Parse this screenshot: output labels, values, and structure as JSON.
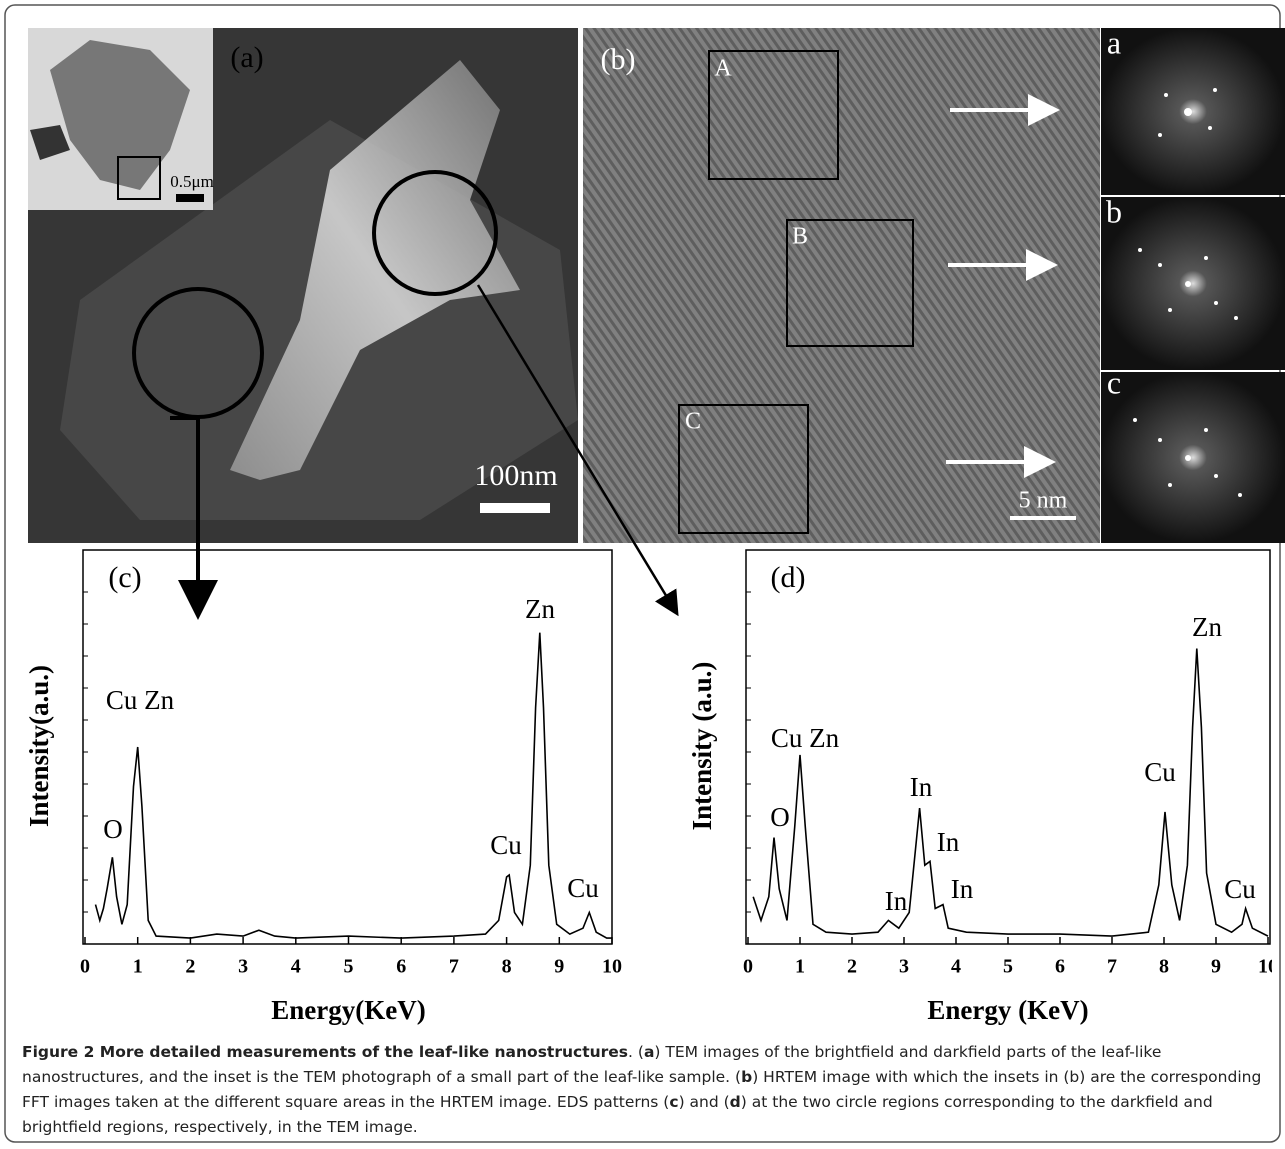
{
  "panels": {
    "a": {
      "label": "(a)",
      "inset_scale": "0.5μm",
      "scale": "100nm"
    },
    "b": {
      "label": "(b)",
      "regions": [
        "A",
        "B",
        "C"
      ],
      "scale": "5 nm",
      "fft_labels": [
        "a",
        "b",
        "c"
      ]
    }
  },
  "chart_data": [
    {
      "type": "line",
      "panel_label": "(c)",
      "x_label": "Energy(KeV)",
      "y_label": "Intensity(a.u.)",
      "color": "#000000",
      "xlim": [
        0,
        10
      ],
      "ylim": [
        0,
        100
      ],
      "xticks": [
        0,
        1,
        2,
        3,
        4,
        5,
        6,
        7,
        8,
        9,
        10
      ],
      "x": [
        0.2,
        0.28,
        0.35,
        0.42,
        0.52,
        0.6,
        0.7,
        0.8,
        0.92,
        1.0,
        1.08,
        1.2,
        1.35,
        2,
        2.5,
        3,
        3.3,
        3.6,
        4,
        5,
        6,
        7,
        7.6,
        7.85,
        8.0,
        8.05,
        8.15,
        8.3,
        8.45,
        8.55,
        8.63,
        8.7,
        8.8,
        8.95,
        9.2,
        9.45,
        9.57,
        9.7,
        9.9,
        10
      ],
      "values": [
        10,
        6,
        9,
        14,
        22,
        12,
        5,
        10,
        40,
        50,
        35,
        6,
        2,
        1.5,
        2.5,
        2,
        3.5,
        2,
        1.5,
        2,
        1.5,
        2,
        2.5,
        6,
        17,
        17.5,
        8,
        5,
        20,
        60,
        79,
        60,
        20,
        5,
        2.5,
        4,
        8,
        3,
        1.5,
        1.5
      ],
      "annotations": [
        "Cu Zn",
        "O",
        "Zn",
        "Cu",
        "Cu"
      ]
    },
    {
      "type": "line",
      "panel_label": "(d)",
      "x_label": "Energy (KeV)",
      "y_label": "Intensity (a.u.)",
      "color": "#000000",
      "xlim": [
        0,
        10
      ],
      "ylim": [
        0,
        100
      ],
      "xticks": [
        0,
        1,
        2,
        3,
        4,
        5,
        6,
        7,
        8,
        9,
        10
      ],
      "x": [
        0.1,
        0.25,
        0.4,
        0.5,
        0.6,
        0.75,
        0.9,
        1.0,
        1.1,
        1.25,
        1.5,
        2,
        2.5,
        2.7,
        2.9,
        3.1,
        3.3,
        3.4,
        3.5,
        3.6,
        3.75,
        3.85,
        4.2,
        5,
        6,
        7,
        7.7,
        7.9,
        8.02,
        8.15,
        8.3,
        8.45,
        8.55,
        8.63,
        8.72,
        8.82,
        9.0,
        9.3,
        9.5,
        9.57,
        9.7,
        10
      ],
      "values": [
        12,
        6,
        12,
        27,
        14,
        6,
        30,
        48,
        30,
        5,
        3,
        2.5,
        3,
        6,
        4,
        8,
        34.5,
        20,
        21,
        9,
        10,
        4,
        3,
        2.5,
        2.5,
        2,
        3,
        15,
        33.5,
        15,
        6,
        20,
        55,
        75,
        55,
        18,
        5,
        3,
        5,
        9,
        4,
        2
      ],
      "annotations": [
        "Cu Zn",
        "O",
        "In",
        "In",
        "In",
        "In",
        "Cu",
        "Zn",
        "Cu"
      ]
    }
  ],
  "caption": {
    "runs": [
      {
        "text": "Figure 2 More detailed measurements of the leaf-like nanostructures",
        "bold": true
      },
      {
        "text": ". (",
        "bold": false
      },
      {
        "text": "a",
        "bold": true
      },
      {
        "text": ") TEM images of the brightfield and darkfield parts of the leaf-like nanostructures, and the inset is the TEM photograph of a small part of the leaf-like sample. (",
        "bold": false
      },
      {
        "text": "b",
        "bold": true
      },
      {
        "text": ") HRTEM image with which the insets in (b) are the corresponding FFT images taken at the different square areas in the HRTEM image. EDS patterns (",
        "bold": false
      },
      {
        "text": "c",
        "bold": true
      },
      {
        "text": ") and (",
        "bold": false
      },
      {
        "text": "d",
        "bold": true
      },
      {
        "text": ") at the two circle regions corresponding to the darkfield and brightfield regions, respectively, in the TEM image.",
        "bold": false
      }
    ]
  }
}
